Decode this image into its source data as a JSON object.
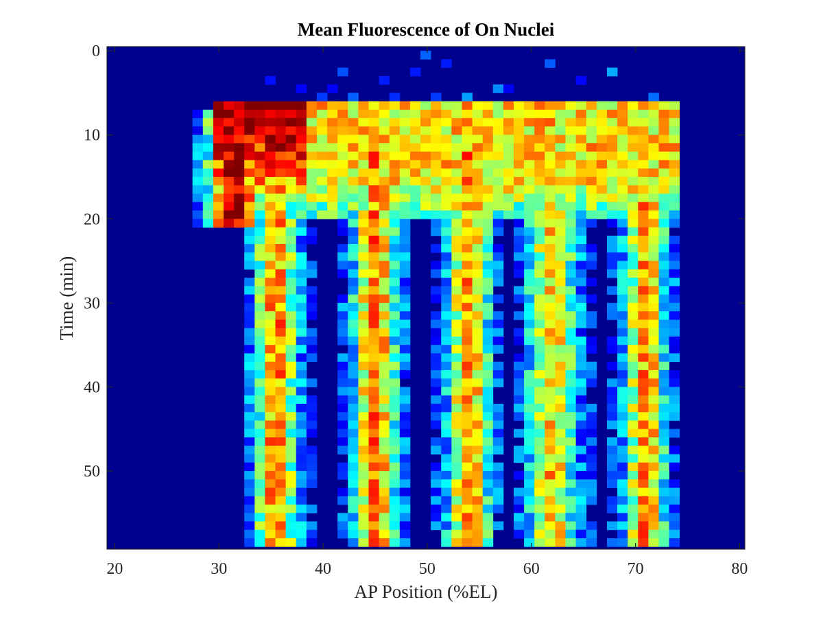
{
  "chart_data": {
    "type": "heatmap",
    "title": "Mean Fluorescence of On Nuclei",
    "xlabel": "AP Position (%EL)",
    "ylabel": "Time (min)",
    "xlim": [
      19.25,
      80.5
    ],
    "ylim": [
      -0.5,
      59.3
    ],
    "y_reversed": true,
    "x_ticks": [
      20,
      30,
      40,
      50,
      60,
      70,
      80
    ],
    "y_ticks": [
      0,
      10,
      20,
      30,
      40,
      50
    ],
    "colormap": "jet",
    "background_color": "#00008f",
    "bin_x_start": 19.5,
    "bin_x_width": 0.995,
    "bin_y_start": 0,
    "bin_y_width": 1,
    "bin_count_x": 61,
    "bin_count_y": 59,
    "stripes": [
      {
        "x_center": 31.5,
        "width": 1.8,
        "t_start": 7,
        "t_end": 20,
        "intensity": 0.85
      },
      {
        "x_center": 35.5,
        "width": 1.4,
        "t_start": 7,
        "t_end": 58,
        "intensity": 0.62
      },
      {
        "x_center": 45.0,
        "width": 1.5,
        "t_start": 12,
        "t_end": 58,
        "intensity": 0.62
      },
      {
        "x_center": 54.0,
        "width": 1.4,
        "t_start": 12,
        "t_end": 58,
        "intensity": 0.62
      },
      {
        "x_center": 62.0,
        "width": 1.6,
        "t_start": 8,
        "t_end": 58,
        "intensity": 0.55
      },
      {
        "x_center": 71.0,
        "width": 1.4,
        "t_start": 8,
        "t_end": 58,
        "intensity": 0.6
      }
    ]
  },
  "colors": {
    "axis": "#262626",
    "title": "#000000"
  }
}
